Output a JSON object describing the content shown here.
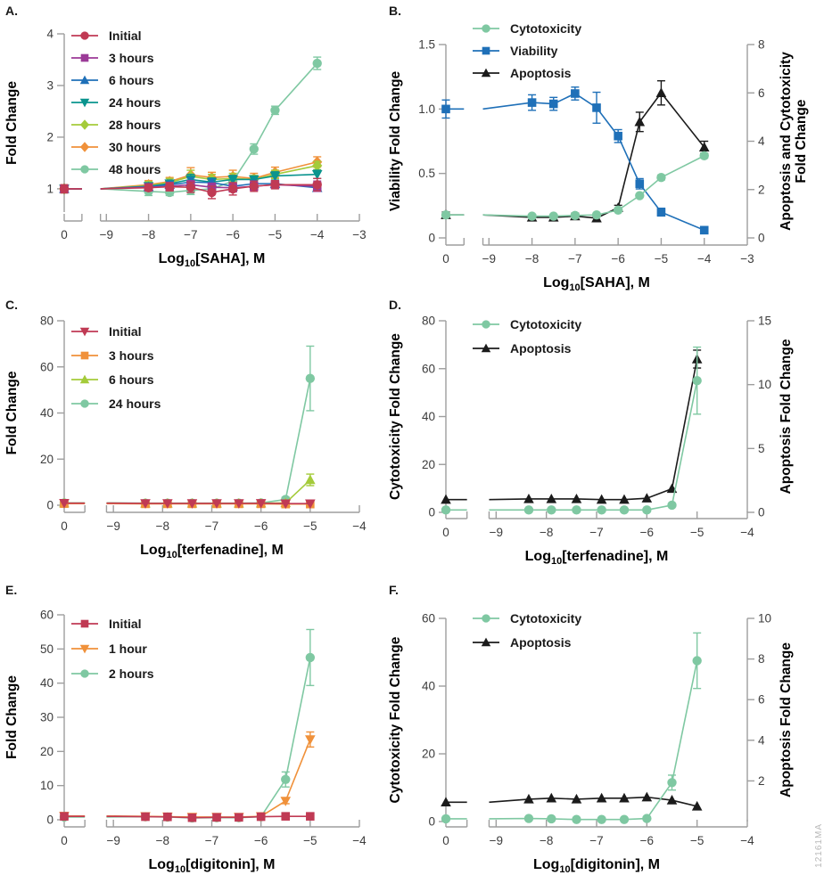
{
  "watermark": "12161MA",
  "colors": {
    "crimson": "#C03A54",
    "purple": "#9B3A97",
    "blue": "#1F70B8",
    "teal": "#0A948E",
    "yellowgreen": "#A4CB3A",
    "orange": "#F0913A",
    "seafoam": "#7FC8A2",
    "black": "#1B1B1B",
    "axis": "#9E9E9E",
    "tick_text": "#3C3C3C",
    "label_text": "#000000"
  },
  "chart_data": [
    {
      "type": "line",
      "panel": "A.",
      "xlabel": {
        "pre": "Log",
        "sub": "10",
        "post": "[SAHA], M"
      },
      "x_ticks": [
        "0",
        "−9",
        "−8",
        "−7",
        "−6",
        "−5",
        "−4",
        "−3"
      ],
      "x_range": [
        -9,
        -3
      ],
      "left_axis": {
        "label": [
          "Fold Change"
        ],
        "tick_labels": [
          "1",
          "2",
          "3",
          "4"
        ],
        "tick_values": [
          1,
          2,
          3,
          4
        ],
        "range": [
          0.55,
          4
        ]
      },
      "right_axis": null,
      "x": [
        "C",
        -8,
        -7.5,
        -7,
        -6.5,
        -6,
        -5.5,
        -5,
        -4
      ],
      "series": [
        {
          "name": "Initial",
          "marker": "circle",
          "color": "crimson",
          "axis": "left",
          "y": [
            1.0,
            1.02,
            1.04,
            1.03,
            0.93,
            1.0,
            1.05,
            1.08,
            1.08
          ],
          "err": [
            0.08,
            0.05,
            0.08,
            0.1,
            0.12,
            0.12,
            0.1,
            0.08,
            0.12
          ]
        },
        {
          "name": "3 hours",
          "marker": "square",
          "color": "purple",
          "axis": "left",
          "y": [
            1.0,
            1.03,
            1.05,
            1.08,
            1.03,
            1.02,
            1.05,
            1.08,
            1.05
          ],
          "err": [
            0.06,
            0.05,
            0.06,
            0.08,
            0.08,
            0.08,
            0.08,
            0.06,
            0.1
          ]
        },
        {
          "name": "6 hours",
          "marker": "triangle-up",
          "color": "blue",
          "axis": "left",
          "y": [
            1.0,
            1.04,
            1.08,
            1.13,
            1.12,
            1.05,
            1.1,
            1.1,
            1.02
          ],
          "err": [
            0.05,
            0.05,
            0.06,
            0.08,
            0.06,
            0.06,
            0.06,
            0.05,
            0.06
          ]
        },
        {
          "name": "24 hours",
          "marker": "triangle-down",
          "color": "teal",
          "axis": "left",
          "y": [
            1.0,
            1.05,
            1.1,
            1.18,
            1.13,
            1.18,
            1.18,
            1.25,
            1.28
          ],
          "err": [
            0.05,
            0.06,
            0.06,
            0.1,
            0.08,
            0.08,
            0.06,
            0.08,
            0.08
          ]
        },
        {
          "name": "28 hours",
          "marker": "diamond",
          "color": "yellowgreen",
          "axis": "left",
          "y": [
            1.0,
            1.06,
            1.12,
            1.24,
            1.18,
            1.2,
            1.18,
            1.28,
            1.45
          ],
          "err": [
            0.05,
            0.08,
            0.08,
            0.12,
            0.1,
            0.1,
            0.08,
            0.08,
            0.08
          ]
        },
        {
          "name": "30 hours",
          "marker": "diamond",
          "color": "orange",
          "axis": "left",
          "y": [
            1.0,
            1.08,
            1.14,
            1.27,
            1.22,
            1.24,
            1.2,
            1.32,
            1.52
          ],
          "err": [
            0.05,
            0.08,
            0.08,
            0.14,
            0.1,
            0.12,
            0.1,
            0.1,
            0.1
          ]
        },
        {
          "name": "48 hours",
          "marker": "circle",
          "color": "seafoam",
          "axis": "left",
          "y": [
            1.0,
            0.95,
            0.93,
            0.97,
            1.0,
            1.15,
            1.77,
            2.52,
            3.43
          ],
          "err": [
            0.08,
            0.08,
            0.06,
            0.08,
            0.08,
            0.08,
            0.1,
            0.08,
            0.12
          ]
        }
      ]
    },
    {
      "type": "line",
      "panel": "B.",
      "xlabel": {
        "pre": "Log",
        "sub": "10",
        "post": "[SAHA], M"
      },
      "x_ticks": [
        "0",
        "−9",
        "−8",
        "−7",
        "−6",
        "−5",
        "−4",
        "−3"
      ],
      "x_range": [
        -9,
        -3
      ],
      "left_axis": {
        "label": [
          "Viability Fold Change"
        ],
        "tick_labels": [
          "0",
          "0.5",
          "1.0",
          "1.5"
        ],
        "tick_values": [
          0,
          0.5,
          1.0,
          1.5
        ],
        "range": [
          0,
          1.5
        ]
      },
      "right_axis": {
        "label": [
          "Apoptosis and Cytotoxicity",
          "Fold Change"
        ],
        "tick_labels": [
          "0",
          "2",
          "4",
          "6",
          "8"
        ],
        "tick_values": [
          0,
          2,
          4,
          6,
          8
        ],
        "range": [
          0,
          8
        ]
      },
      "x": [
        "C",
        -8,
        -7.5,
        -7,
        -6.5,
        -6,
        -5.5,
        -5,
        -4
      ],
      "series": [
        {
          "name": "Cytotoxicity",
          "marker": "circle",
          "color": "seafoam",
          "axis": "right",
          "y": [
            0.95,
            0.9,
            0.9,
            0.93,
            0.95,
            1.15,
            1.75,
            2.5,
            3.4
          ],
          "err": [
            0,
            0,
            0,
            0,
            0,
            0,
            0,
            0.1,
            0.1
          ]
        },
        {
          "name": "Viability",
          "marker": "square",
          "color": "blue",
          "axis": "left",
          "y": [
            1.0,
            1.05,
            1.04,
            1.12,
            1.01,
            0.79,
            0.42,
            0.2,
            0.06
          ],
          "err": [
            0.07,
            0.06,
            0.05,
            0.05,
            0.12,
            0.05,
            0.04,
            0.03,
            0.02
          ]
        },
        {
          "name": "Apoptosis",
          "marker": "triangle-up",
          "color": "black",
          "axis": "right",
          "y": [
            0.95,
            0.85,
            0.85,
            0.9,
            0.82,
            1.25,
            4.8,
            6.0,
            3.75
          ],
          "err": [
            0.12,
            0.12,
            0.1,
            0.12,
            0.15,
            0.1,
            0.4,
            0.5,
            0.25
          ]
        }
      ]
    },
    {
      "type": "line",
      "panel": "C.",
      "xlabel": {
        "pre": "Log",
        "sub": "10",
        "post": "[terfenadine], M"
      },
      "x_ticks": [
        "0",
        "−9",
        "−8",
        "−7",
        "−6",
        "−5",
        "−4"
      ],
      "x_range": [
        -9,
        -4
      ],
      "left_axis": {
        "label": [
          "Fold Change"
        ],
        "tick_labels": [
          "0",
          "20",
          "40",
          "60",
          "80"
        ],
        "tick_values": [
          0,
          20,
          40,
          60,
          80
        ],
        "range": [
          0,
          80
        ]
      },
      "right_axis": null,
      "x": [
        "C",
        -8.35,
        -7.9,
        -7.4,
        -6.9,
        -6.45,
        -6,
        -5.5,
        -5
      ],
      "series": [
        {
          "name": "Initial",
          "marker": "triangle-down",
          "color": "crimson",
          "axis": "left",
          "y": [
            0.9,
            0.8,
            0.8,
            0.8,
            0.8,
            0.8,
            0.85,
            0.7,
            0.7
          ],
          "err": [
            0,
            0,
            0,
            0,
            0,
            0,
            0,
            0,
            0
          ]
        },
        {
          "name": "3 hours",
          "marker": "square",
          "color": "orange",
          "axis": "left",
          "y": [
            0.7,
            0.6,
            0.6,
            0.6,
            0.6,
            0.6,
            0.6,
            0.5,
            0.5
          ],
          "err": [
            0,
            0,
            0,
            0,
            0,
            0,
            0,
            0,
            0
          ]
        },
        {
          "name": "6 hours",
          "marker": "triangle-up",
          "color": "yellowgreen",
          "axis": "left",
          "y": [
            0.9,
            0.8,
            0.8,
            0.8,
            0.8,
            0.8,
            0.85,
            1.0,
            11
          ],
          "err": [
            0,
            0,
            0,
            0,
            0,
            0,
            0,
            0,
            2.5
          ]
        },
        {
          "name": "24 hours",
          "marker": "circle",
          "color": "seafoam",
          "axis": "left",
          "y": [
            1.0,
            0.9,
            0.9,
            0.9,
            0.9,
            0.9,
            1.0,
            2.5,
            55
          ],
          "err": [
            0,
            0,
            0,
            0,
            0,
            0,
            0,
            1,
            14
          ]
        }
      ]
    },
    {
      "type": "line",
      "panel": "D.",
      "xlabel": {
        "pre": "Log",
        "sub": "10",
        "post": "[terfenadine], M"
      },
      "x_ticks": [
        "0",
        "−9",
        "−8",
        "−7",
        "−6",
        "−5",
        "−4"
      ],
      "x_range": [
        -9,
        -4
      ],
      "left_axis": {
        "label": [
          "Cytotoxicity Fold Change"
        ],
        "tick_labels": [
          "0",
          "20",
          "40",
          "60",
          "80"
        ],
        "tick_values": [
          0,
          20,
          40,
          60,
          80
        ],
        "range": [
          0,
          80
        ]
      },
      "right_axis": {
        "label": [
          "Apoptosis Fold Change"
        ],
        "tick_labels": [
          "0",
          "5",
          "10",
          "15"
        ],
        "tick_values": [
          0,
          5,
          10,
          15
        ],
        "range": [
          0,
          15
        ]
      },
      "x": [
        "C",
        -8.35,
        -7.9,
        -7.4,
        -6.9,
        -6.45,
        -6,
        -5.5,
        -5
      ],
      "series": [
        {
          "name": "Cytotoxicity",
          "marker": "circle",
          "color": "seafoam",
          "axis": "left",
          "y": [
            1.0,
            1.0,
            1.0,
            1.0,
            1.0,
            1.0,
            1.0,
            3.0,
            55
          ],
          "err": [
            0,
            0,
            0,
            0,
            0,
            0,
            0,
            0,
            14
          ]
        },
        {
          "name": "Apoptosis",
          "marker": "triangle-up",
          "color": "black",
          "axis": "right",
          "y": [
            1.0,
            1.05,
            1.05,
            1.05,
            1.0,
            1.0,
            1.1,
            1.85,
            12
          ],
          "err": [
            0,
            0,
            0,
            0,
            0,
            0,
            0,
            0,
            0.7
          ]
        }
      ]
    },
    {
      "type": "line",
      "panel": "E.",
      "xlabel": {
        "pre": "Log",
        "sub": "10",
        "post": "[digitonin], M"
      },
      "x_ticks": [
        "0",
        "−9",
        "−8",
        "−7",
        "−6",
        "−5",
        "−4"
      ],
      "x_range": [
        -9,
        -4
      ],
      "left_axis": {
        "label": [
          "Fold Change"
        ],
        "tick_labels": [
          "0",
          "10",
          "20",
          "30",
          "40",
          "50",
          "60"
        ],
        "tick_values": [
          0,
          10,
          20,
          30,
          40,
          50,
          60
        ],
        "range": [
          0,
          60
        ]
      },
      "right_axis": null,
      "x": [
        "C",
        -8.35,
        -7.9,
        -7.4,
        -6.9,
        -6.45,
        -6,
        -5.5,
        -5
      ],
      "series": [
        {
          "name": "Initial",
          "marker": "square",
          "color": "crimson",
          "axis": "left",
          "y": [
            1.0,
            0.9,
            0.85,
            0.6,
            0.7,
            0.7,
            0.9,
            1.0,
            1.0
          ],
          "err": [
            0,
            0,
            0,
            0,
            0,
            0,
            0,
            0,
            0
          ]
        },
        {
          "name": "1 hour",
          "marker": "triangle-down",
          "color": "orange",
          "axis": "left",
          "y": [
            1.1,
            1.0,
            0.9,
            0.8,
            0.8,
            0.8,
            1.0,
            5.5,
            23.5
          ],
          "err": [
            0.8,
            0.6,
            0,
            0,
            0,
            0,
            0,
            0.8,
            2.2
          ]
        },
        {
          "name": "2 hours",
          "marker": "circle",
          "color": "seafoam",
          "axis": "left",
          "y": [
            0.8,
            0.9,
            0.8,
            0.55,
            0.6,
            0.6,
            0.9,
            11.8,
            47.5
          ],
          "err": [
            0,
            0,
            0,
            0,
            0,
            0,
            0,
            2.2,
            8.2
          ]
        }
      ]
    },
    {
      "type": "line",
      "panel": "F.",
      "xlabel": {
        "pre": "Log",
        "sub": "10",
        "post": "[digitonin], M"
      },
      "x_ticks": [
        "0",
        "−9",
        "−8",
        "−7",
        "−6",
        "−5",
        "−4"
      ],
      "x_range": [
        -9,
        -4
      ],
      "left_axis": {
        "label": [
          "Cytotoxicity Fold Change"
        ],
        "tick_labels": [
          "0",
          "20",
          "40",
          "60"
        ],
        "tick_values": [
          0,
          20,
          40,
          60
        ],
        "range": [
          0,
          60
        ]
      },
      "right_axis": {
        "label": [
          "Apoptosis Fold Change"
        ],
        "tick_labels": [
          "2",
          "4",
          "6",
          "8",
          "10"
        ],
        "tick_values": [
          2,
          4,
          6,
          8,
          10
        ],
        "range": [
          0,
          10
        ]
      },
      "x": [
        "C",
        -8.35,
        -7.9,
        -7.4,
        -6.9,
        -6.45,
        -6,
        -5.5,
        -5
      ],
      "series": [
        {
          "name": "Cytotoxicity",
          "marker": "circle",
          "color": "seafoam",
          "axis": "left",
          "y": [
            0.8,
            0.9,
            0.8,
            0.6,
            0.6,
            0.6,
            0.9,
            11.5,
            47.5
          ],
          "err": [
            0,
            0,
            0,
            0,
            0,
            0,
            0,
            2.2,
            8.2
          ]
        },
        {
          "name": "Apoptosis",
          "marker": "triangle-up",
          "color": "black",
          "axis": "right",
          "y": [
            0.95,
            1.1,
            1.15,
            1.1,
            1.15,
            1.15,
            1.2,
            1.05,
            0.75
          ],
          "err": [
            0,
            0,
            0,
            0,
            0,
            0,
            0,
            0,
            0
          ]
        }
      ]
    }
  ]
}
